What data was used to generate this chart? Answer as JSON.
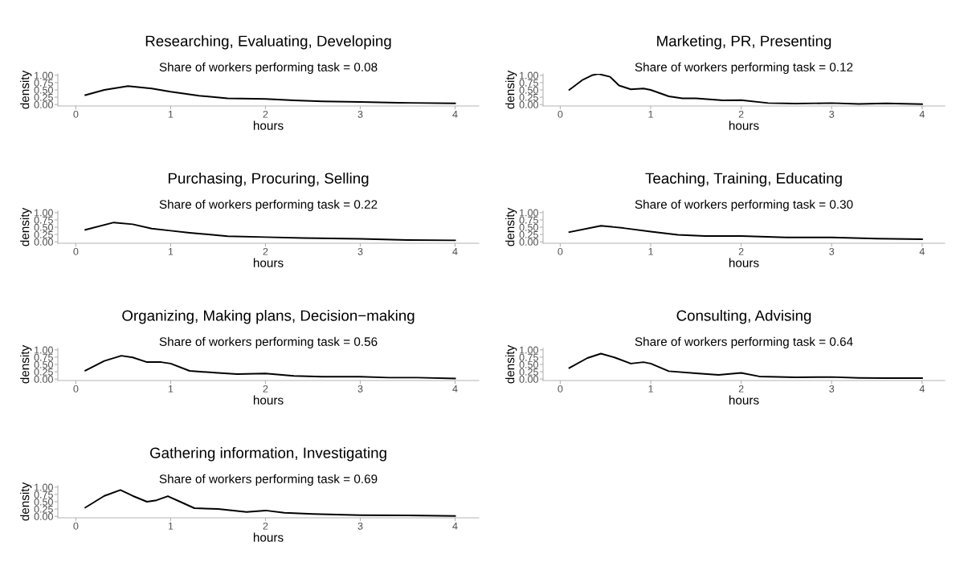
{
  "chart_data": [
    {
      "type": "line",
      "title": "Researching, Evaluating, Developing",
      "subtitle": "Share of workers performing task = 0.08",
      "xlabel": "hours",
      "ylabel": "density",
      "xlim": [
        -0.19,
        4.25
      ],
      "ylim": [
        -0.05,
        1.05
      ],
      "xticks": [
        0,
        1,
        2,
        3,
        4
      ],
      "yticks": [
        {
          "value": 0,
          "label": "0.00"
        },
        {
          "value": 0.25,
          "label": "0.25"
        },
        {
          "value": 0.5,
          "label": "0.50"
        },
        {
          "value": 0.75,
          "label": "0.75"
        },
        {
          "value": 1,
          "label": "1.00"
        }
      ],
      "grid": false,
      "color": "#000000",
      "x": [
        0.1,
        0.3,
        0.55,
        0.8,
        1.0,
        1.3,
        1.6,
        2.0,
        2.3,
        2.6,
        3.0,
        3.4,
        4.0
      ],
      "values": [
        0.32,
        0.5,
        0.63,
        0.55,
        0.44,
        0.3,
        0.21,
        0.19,
        0.14,
        0.11,
        0.09,
        0.06,
        0.04
      ]
    },
    {
      "type": "line",
      "title": "Marketing, PR, Presenting",
      "subtitle": "Share of workers performing task = 0.12",
      "xlabel": "hours",
      "ylabel": "density",
      "xlim": [
        -0.19,
        4.25
      ],
      "ylim": [
        -0.05,
        1.05
      ],
      "xticks": [
        0,
        1,
        2,
        3,
        4
      ],
      "yticks": [
        {
          "value": 0,
          "label": "0.00"
        },
        {
          "value": 0.25,
          "label": "0.25"
        },
        {
          "value": 0.5,
          "label": "0.50"
        },
        {
          "value": 0.75,
          "label": "0.75"
        },
        {
          "value": 1,
          "label": "1.00"
        }
      ],
      "grid": false,
      "color": "#000000",
      "x": [
        0.1,
        0.25,
        0.35,
        0.42,
        0.55,
        0.65,
        0.78,
        0.92,
        1.0,
        1.2,
        1.35,
        1.5,
        1.8,
        2.0,
        2.3,
        2.6,
        3.0,
        3.3,
        3.6,
        4.0
      ],
      "values": [
        0.5,
        0.85,
        1.0,
        1.05,
        0.95,
        0.65,
        0.52,
        0.55,
        0.5,
        0.28,
        0.21,
        0.21,
        0.14,
        0.15,
        0.05,
        0.03,
        0.05,
        0.02,
        0.04,
        0.01
      ]
    },
    {
      "type": "line",
      "title": "Purchasing, Procuring, Selling",
      "subtitle": "Share of workers performing task = 0.22",
      "xlabel": "hours",
      "ylabel": "density",
      "xlim": [
        -0.19,
        4.25
      ],
      "ylim": [
        -0.05,
        1.05
      ],
      "xticks": [
        0,
        1,
        2,
        3,
        4
      ],
      "yticks": [
        {
          "value": 0,
          "label": "0.00"
        },
        {
          "value": 0.25,
          "label": "0.25"
        },
        {
          "value": 0.5,
          "label": "0.50"
        },
        {
          "value": 0.75,
          "label": "0.75"
        },
        {
          "value": 1,
          "label": "1.00"
        }
      ],
      "grid": false,
      "color": "#000000",
      "x": [
        0.1,
        0.4,
        0.6,
        0.8,
        1.0,
        1.2,
        1.6,
        2.0,
        2.4,
        3.0,
        3.5,
        4.0
      ],
      "values": [
        0.41,
        0.66,
        0.6,
        0.45,
        0.38,
        0.31,
        0.19,
        0.16,
        0.13,
        0.1,
        0.06,
        0.05
      ]
    },
    {
      "type": "line",
      "title": "Teaching, Training, Educating",
      "subtitle": "Share of workers performing task = 0.30",
      "xlabel": "hours",
      "ylabel": "density",
      "xlim": [
        -0.19,
        4.25
      ],
      "ylim": [
        -0.05,
        1.05
      ],
      "xticks": [
        0,
        1,
        2,
        3,
        4
      ],
      "yticks": [
        {
          "value": 0,
          "label": "0.00"
        },
        {
          "value": 0.25,
          "label": "0.25"
        },
        {
          "value": 0.5,
          "label": "0.50"
        },
        {
          "value": 0.75,
          "label": "0.75"
        },
        {
          "value": 1,
          "label": "1.00"
        }
      ],
      "grid": false,
      "color": "#000000",
      "x": [
        0.1,
        0.45,
        0.7,
        1.0,
        1.3,
        1.6,
        2.0,
        2.5,
        3.0,
        3.5,
        4.0
      ],
      "values": [
        0.33,
        0.55,
        0.47,
        0.35,
        0.24,
        0.2,
        0.2,
        0.15,
        0.15,
        0.11,
        0.09
      ]
    },
    {
      "type": "line",
      "title": "Organizing, Making plans, Decision−making",
      "subtitle": "Share of workers performing task = 0.56",
      "xlabel": "hours",
      "ylabel": "density",
      "xlim": [
        -0.19,
        4.25
      ],
      "ylim": [
        -0.05,
        1.05
      ],
      "xticks": [
        0,
        1,
        2,
        3,
        4
      ],
      "yticks": [
        {
          "value": 0,
          "label": "0.00"
        },
        {
          "value": 0.25,
          "label": "0.25"
        },
        {
          "value": 0.5,
          "label": "0.50"
        },
        {
          "value": 0.75,
          "label": "0.75"
        },
        {
          "value": 1,
          "label": "1.00"
        }
      ],
      "grid": false,
      "color": "#000000",
      "x": [
        0.1,
        0.3,
        0.48,
        0.6,
        0.75,
        0.9,
        1.0,
        1.2,
        1.5,
        1.7,
        2.0,
        2.3,
        2.6,
        3.0,
        3.3,
        3.6,
        4.0
      ],
      "values": [
        0.29,
        0.62,
        0.8,
        0.74,
        0.58,
        0.58,
        0.53,
        0.28,
        0.21,
        0.17,
        0.19,
        0.11,
        0.08,
        0.08,
        0.05,
        0.05,
        0.02
      ]
    },
    {
      "type": "line",
      "title": "Consulting, Advising",
      "subtitle": "Share of workers performing task = 0.64",
      "xlabel": "hours",
      "ylabel": "density",
      "xlim": [
        -0.19,
        4.25
      ],
      "ylim": [
        -0.05,
        1.05
      ],
      "xticks": [
        0,
        1,
        2,
        3,
        4
      ],
      "yticks": [
        {
          "value": 0,
          "label": "0.00"
        },
        {
          "value": 0.25,
          "label": "0.25"
        },
        {
          "value": 0.5,
          "label": "0.50"
        },
        {
          "value": 0.75,
          "label": "0.75"
        },
        {
          "value": 1,
          "label": "1.00"
        }
      ],
      "grid": false,
      "color": "#000000",
      "x": [
        0.1,
        0.3,
        0.45,
        0.6,
        0.78,
        0.92,
        1.0,
        1.2,
        1.5,
        1.75,
        2.0,
        2.2,
        2.6,
        3.0,
        3.3,
        3.6,
        4.0
      ],
      "values": [
        0.38,
        0.72,
        0.87,
        0.74,
        0.53,
        0.58,
        0.53,
        0.27,
        0.2,
        0.14,
        0.21,
        0.09,
        0.06,
        0.07,
        0.04,
        0.03,
        0.03
      ]
    },
    {
      "type": "line",
      "title": "Gathering information, Investigating",
      "subtitle": "Share of workers performing task = 0.69",
      "xlabel": "hours",
      "ylabel": "density",
      "xlim": [
        -0.19,
        4.25
      ],
      "ylim": [
        -0.05,
        1.05
      ],
      "xticks": [
        0,
        1,
        2,
        3,
        4
      ],
      "yticks": [
        {
          "value": 0,
          "label": "0.00"
        },
        {
          "value": 0.25,
          "label": "0.25"
        },
        {
          "value": 0.5,
          "label": "0.50"
        },
        {
          "value": 0.75,
          "label": "0.75"
        },
        {
          "value": 1,
          "label": "1.00"
        }
      ],
      "grid": false,
      "color": "#000000",
      "x": [
        0.1,
        0.3,
        0.47,
        0.6,
        0.75,
        0.85,
        0.97,
        1.1,
        1.25,
        1.5,
        1.8,
        2.0,
        2.2,
        2.5,
        3.0,
        3.5,
        4.0
      ],
      "values": [
        0.3,
        0.7,
        0.9,
        0.7,
        0.5,
        0.55,
        0.69,
        0.5,
        0.28,
        0.25,
        0.15,
        0.2,
        0.12,
        0.08,
        0.04,
        0.03,
        0.01
      ]
    }
  ]
}
